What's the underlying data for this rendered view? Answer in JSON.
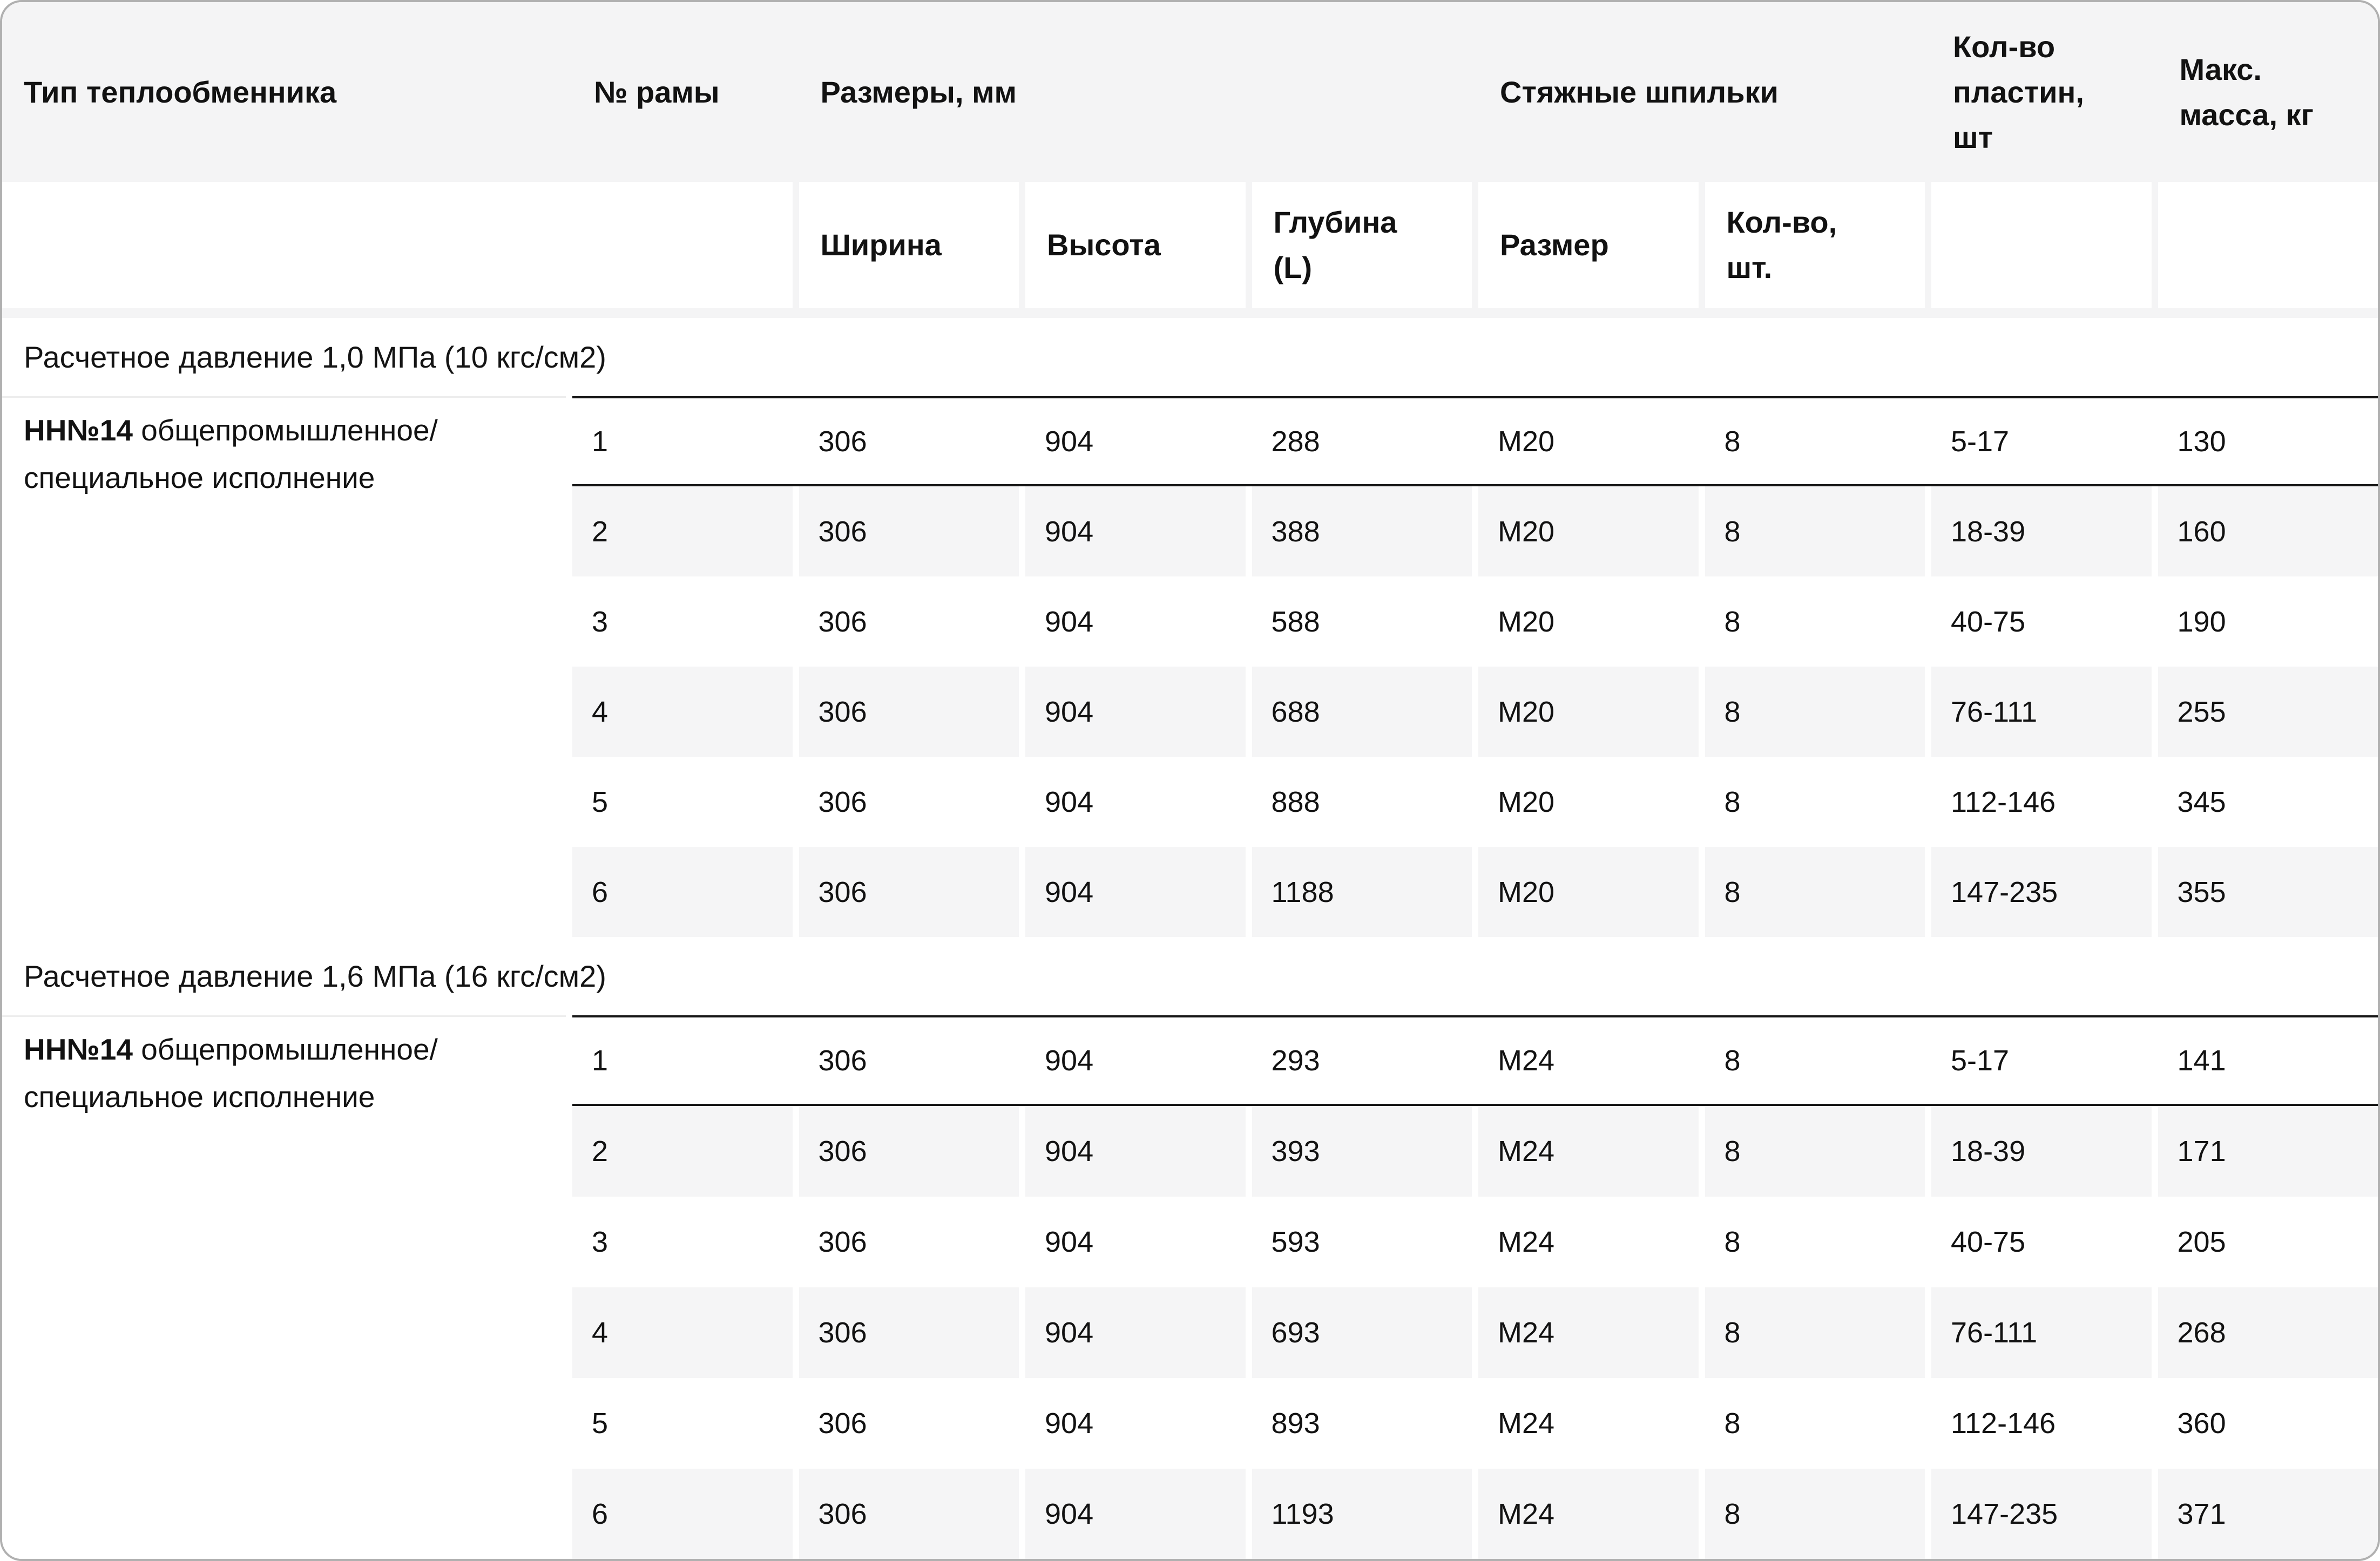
{
  "header": {
    "col_type": "Тип теплообменника",
    "col_frame": "№ рамы",
    "col_dims": "Размеры, мм",
    "col_studs": "Стяжные шпильки",
    "col_plates": "Кол-во\nпластин,\nшт",
    "col_mass": "Макс.\nмасса, кг",
    "sub_width": "Ширина",
    "sub_height": "Высота",
    "sub_depth": "Глубина\n(L)",
    "sub_size": "Размер",
    "sub_qty": "Кол-во,\nшт."
  },
  "sections": [
    {
      "title": "Расчетное давление 1,0 МПа (10 кгс/см2)",
      "type_bold": "НН№14",
      "type_rest": "общепромышленное/\nспециальное исполнение",
      "rows": [
        [
          "1",
          "306",
          "904",
          "288",
          "М20",
          "8",
          "5-17",
          "130"
        ],
        [
          "2",
          "306",
          "904",
          "388",
          "М20",
          "8",
          "18-39",
          "160"
        ],
        [
          "3",
          "306",
          "904",
          "588",
          "М20",
          "8",
          "40-75",
          "190"
        ],
        [
          "4",
          "306",
          "904",
          "688",
          "М20",
          "8",
          "76-111",
          "255"
        ],
        [
          "5",
          "306",
          "904",
          "888",
          "М20",
          "8",
          "112-146",
          "345"
        ],
        [
          "6",
          "306",
          "904",
          "1188",
          "М20",
          "8",
          "147-235",
          "355"
        ]
      ]
    },
    {
      "title": "Расчетное давление 1,6 МПа (16 кгс/см2)",
      "type_bold": "НН№14",
      "type_rest": "общепромышленное/\nспециальное исполнение",
      "rows": [
        [
          "1",
          "306",
          "904",
          "293",
          "М24",
          "8",
          "5-17",
          "141"
        ],
        [
          "2",
          "306",
          "904",
          "393",
          "М24",
          "8",
          "18-39",
          "171"
        ],
        [
          "3",
          "306",
          "904",
          "593",
          "М24",
          "8",
          "40-75",
          "205"
        ],
        [
          "4",
          "306",
          "904",
          "693",
          "М24",
          "8",
          "76-111",
          "268"
        ],
        [
          "5",
          "306",
          "904",
          "893",
          "М24",
          "8",
          "112-146",
          "360"
        ],
        [
          "6",
          "306",
          "904",
          "1193",
          "М24",
          "8",
          "147-235",
          "371"
        ]
      ]
    }
  ],
  "colors": {
    "header_bg": "#f4f4f5",
    "row_alt_bg": "#f5f5f6",
    "dark_rule": "#161616",
    "card_border": "#b0b0b0"
  }
}
